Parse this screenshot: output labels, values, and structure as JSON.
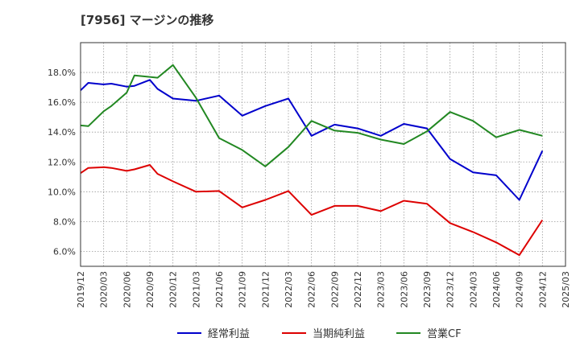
{
  "chart_data": {
    "type": "line",
    "title": "[7956]  マージンの推移",
    "xlabel": "",
    "ylabel": "",
    "y_unit": "%",
    "ylim": [
      5.0,
      20.0
    ],
    "yticks": [
      6.0,
      8.0,
      10.0,
      12.0,
      14.0,
      16.0,
      18.0
    ],
    "ytick_labels": [
      "6.0%",
      "8.0%",
      "10.0%",
      "12.0%",
      "14.0%",
      "16.0%",
      "18.0%"
    ],
    "xticks": [
      "2019/12",
      "2020/03",
      "2020/06",
      "2020/09",
      "2020/12",
      "2021/03",
      "2021/06",
      "2021/09",
      "2021/12",
      "2022/03",
      "2022/06",
      "2022/09",
      "2022/12",
      "2023/03",
      "2023/06",
      "2023/09",
      "2023/12",
      "2024/03",
      "2024/06",
      "2024/09",
      "2024/12",
      "2025/03"
    ],
    "grid": true,
    "legend_position": "bottom",
    "series": [
      {
        "name": "経常利益",
        "color": "#0000cc",
        "points": [
          [
            "2019/12",
            16.8
          ],
          [
            "2020/01",
            17.3
          ],
          [
            "2020/03",
            17.2
          ],
          [
            "2020/04",
            17.25
          ],
          [
            "2020/06",
            17.05
          ],
          [
            "2020/07",
            17.1
          ],
          [
            "2020/09",
            17.5
          ],
          [
            "2020/10",
            16.9
          ],
          [
            "2020/12",
            16.25
          ],
          [
            "2021/03",
            16.1
          ],
          [
            "2021/06",
            16.45
          ],
          [
            "2021/09",
            15.1
          ],
          [
            "2021/12",
            15.75
          ],
          [
            "2022/03",
            16.25
          ],
          [
            "2022/06",
            13.75
          ],
          [
            "2022/09",
            14.5
          ],
          [
            "2022/12",
            14.25
          ],
          [
            "2023/03",
            13.75
          ],
          [
            "2023/06",
            14.55
          ],
          [
            "2023/09",
            14.25
          ],
          [
            "2023/12",
            12.2
          ],
          [
            "2024/03",
            11.3
          ],
          [
            "2024/06",
            11.1
          ],
          [
            "2024/09",
            9.45
          ],
          [
            "2024/12",
            12.75
          ]
        ]
      },
      {
        "name": "当期純利益",
        "color": "#dd0000",
        "points": [
          [
            "2019/12",
            11.25
          ],
          [
            "2020/01",
            11.6
          ],
          [
            "2020/03",
            11.65
          ],
          [
            "2020/04",
            11.6
          ],
          [
            "2020/06",
            11.4
          ],
          [
            "2020/07",
            11.5
          ],
          [
            "2020/09",
            11.8
          ],
          [
            "2020/10",
            11.2
          ],
          [
            "2020/12",
            10.7
          ],
          [
            "2021/03",
            10.0
          ],
          [
            "2021/06",
            10.05
          ],
          [
            "2021/09",
            8.95
          ],
          [
            "2021/12",
            9.45
          ],
          [
            "2022/03",
            10.05
          ],
          [
            "2022/06",
            8.45
          ],
          [
            "2022/09",
            9.05
          ],
          [
            "2022/12",
            9.05
          ],
          [
            "2023/03",
            8.7
          ],
          [
            "2023/06",
            9.4
          ],
          [
            "2023/09",
            9.2
          ],
          [
            "2023/12",
            7.9
          ],
          [
            "2024/03",
            7.3
          ],
          [
            "2024/06",
            6.6
          ],
          [
            "2024/09",
            5.75
          ],
          [
            "2024/12",
            8.1
          ]
        ]
      },
      {
        "name": "営業CF",
        "color": "#228822",
        "points": [
          [
            "2019/12",
            14.45
          ],
          [
            "2020/01",
            14.4
          ],
          [
            "2020/03",
            15.4
          ],
          [
            "2020/04",
            15.75
          ],
          [
            "2020/06",
            16.65
          ],
          [
            "2020/07",
            17.8
          ],
          [
            "2020/09",
            17.7
          ],
          [
            "2020/10",
            17.65
          ],
          [
            "2020/12",
            18.5
          ],
          [
            "2021/03",
            16.3
          ],
          [
            "2021/06",
            13.6
          ],
          [
            "2021/09",
            12.8
          ],
          [
            "2021/12",
            11.7
          ],
          [
            "2022/03",
            13.0
          ],
          [
            "2022/06",
            14.75
          ],
          [
            "2022/09",
            14.1
          ],
          [
            "2022/12",
            13.95
          ],
          [
            "2023/03",
            13.5
          ],
          [
            "2023/06",
            13.2
          ],
          [
            "2023/09",
            14.05
          ],
          [
            "2023/12",
            15.35
          ],
          [
            "2024/03",
            14.75
          ],
          [
            "2024/06",
            13.65
          ],
          [
            "2024/09",
            14.15
          ],
          [
            "2024/12",
            13.75
          ]
        ]
      }
    ]
  }
}
